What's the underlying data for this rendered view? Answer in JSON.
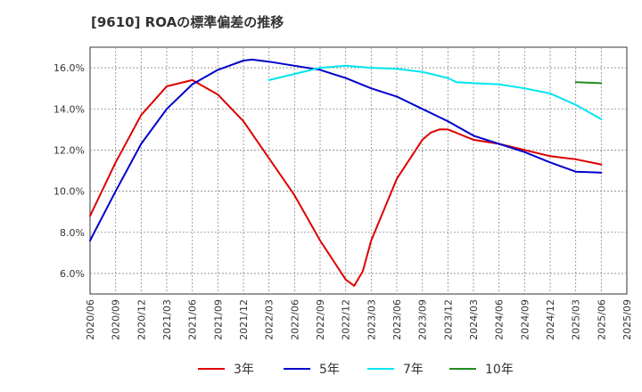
{
  "chart_data": {
    "type": "line",
    "title": "[9610]  ROAの標準偏差の推移",
    "xlabel": "",
    "ylabel": "",
    "ylim": [
      5.0,
      17.0
    ],
    "xlim": [
      "2020/06",
      "2025/09"
    ],
    "y_ticks": [
      "6.0%",
      "8.0%",
      "10.0%",
      "12.0%",
      "14.0%",
      "16.0%"
    ],
    "y_tick_values": [
      6,
      8,
      10,
      12,
      14,
      16
    ],
    "x_ticks": [
      "2020/06",
      "2020/09",
      "2020/12",
      "2021/03",
      "2021/06",
      "2021/09",
      "2021/12",
      "2022/03",
      "2022/06",
      "2022/09",
      "2022/12",
      "2023/03",
      "2023/06",
      "2023/09",
      "2023/12",
      "2024/03",
      "2024/06",
      "2024/09",
      "2024/12",
      "2025/03",
      "2025/06",
      "2025/09"
    ],
    "grid": true,
    "legend": "bottom",
    "series": [
      {
        "name": "3年",
        "color": "#dd0000",
        "points": [
          [
            "2020/06",
            8.8
          ],
          [
            "2020/09",
            11.4
          ],
          [
            "2020/12",
            13.7
          ],
          [
            "2021/03",
            15.1
          ],
          [
            "2021/06",
            15.4
          ],
          [
            "2021/09",
            14.7
          ],
          [
            "2021/12",
            13.4
          ],
          [
            "2022/03",
            11.6
          ],
          [
            "2022/06",
            9.8
          ],
          [
            "2022/09",
            7.6
          ],
          [
            "2022/12",
            5.7
          ],
          [
            "2023/01",
            5.4
          ],
          [
            "2023/02",
            6.1
          ],
          [
            "2023/03",
            7.6
          ],
          [
            "2023/06",
            10.6
          ],
          [
            "2023/09",
            12.5
          ],
          [
            "2023/10",
            12.85
          ],
          [
            "2023/11",
            13.0
          ],
          [
            "2023/12",
            13.0
          ],
          [
            "2024/03",
            12.5
          ],
          [
            "2024/06",
            12.3
          ],
          [
            "2024/09",
            12.0
          ],
          [
            "2024/12",
            11.7
          ],
          [
            "2025/03",
            11.55
          ],
          [
            "2025/06",
            11.3
          ]
        ]
      },
      {
        "name": "5年",
        "color": "#0000cc",
        "points": [
          [
            "2020/06",
            7.6
          ],
          [
            "2020/09",
            10.0
          ],
          [
            "2020/12",
            12.3
          ],
          [
            "2021/03",
            14.0
          ],
          [
            "2021/06",
            15.2
          ],
          [
            "2021/09",
            15.9
          ],
          [
            "2021/12",
            16.35
          ],
          [
            "2022/01",
            16.4
          ],
          [
            "2022/03",
            16.3
          ],
          [
            "2022/06",
            16.1
          ],
          [
            "2022/09",
            15.9
          ],
          [
            "2022/12",
            15.5
          ],
          [
            "2023/03",
            15.0
          ],
          [
            "2023/06",
            14.6
          ],
          [
            "2023/09",
            14.0
          ],
          [
            "2023/12",
            13.4
          ],
          [
            "2024/03",
            12.7
          ],
          [
            "2024/06",
            12.3
          ],
          [
            "2024/09",
            11.9
          ],
          [
            "2024/12",
            11.4
          ],
          [
            "2025/03",
            10.95
          ],
          [
            "2025/06",
            10.9
          ]
        ]
      },
      {
        "name": "7年",
        "color": "#00e5ee",
        "points": [
          [
            "2022/03",
            15.4
          ],
          [
            "2022/06",
            15.7
          ],
          [
            "2022/09",
            16.0
          ],
          [
            "2022/12",
            16.1
          ],
          [
            "2023/03",
            16.0
          ],
          [
            "2023/06",
            15.95
          ],
          [
            "2023/09",
            15.8
          ],
          [
            "2023/12",
            15.5
          ],
          [
            "2024/01",
            15.3
          ],
          [
            "2024/03",
            15.25
          ],
          [
            "2024/06",
            15.2
          ],
          [
            "2024/09",
            15.0
          ],
          [
            "2024/12",
            14.75
          ],
          [
            "2025/03",
            14.2
          ],
          [
            "2025/06",
            13.5
          ]
        ]
      },
      {
        "name": "10年",
        "color": "#228b22",
        "points": [
          [
            "2025/03",
            15.3
          ],
          [
            "2025/06",
            15.25
          ]
        ]
      }
    ]
  }
}
